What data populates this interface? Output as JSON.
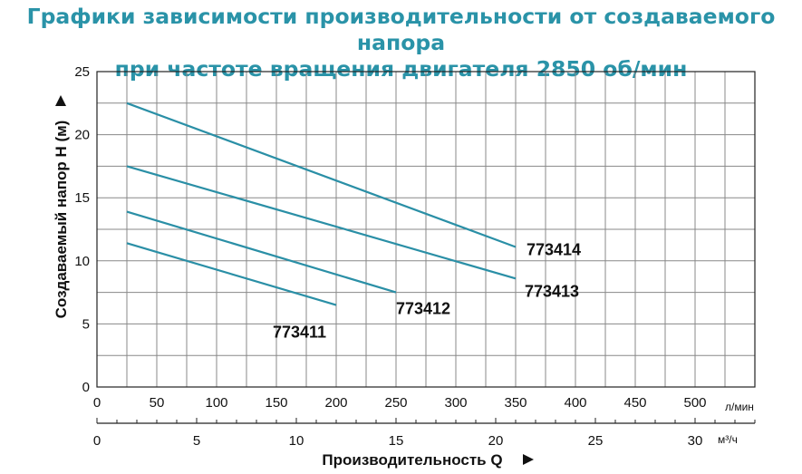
{
  "title": {
    "line1": "Графики зависимости производительности от создаваемого напора",
    "line2": "при частоте вращения двигателя 2850 об/мин"
  },
  "colors": {
    "title": "#2a93a8",
    "series": "#2a8fa6",
    "grid": "#888888"
  },
  "chart_data": {
    "type": "line",
    "xlabel": "Производительность Q",
    "ylabel": "Создаваемый напор H (м)",
    "x_unit": "л/мин",
    "x2_unit": "м³/ч",
    "xlim": [
      0,
      550
    ],
    "ylim": [
      0,
      25
    ],
    "x2lim": [
      0,
      33
    ],
    "x_ticks": [
      "0",
      "50",
      "100",
      "150",
      "200",
      "250",
      "300",
      "350",
      "400",
      "450",
      "500"
    ],
    "x2_ticks": [
      "0",
      "5",
      "10",
      "15",
      "20",
      "25",
      "30"
    ],
    "y_ticks": [
      "0",
      "5",
      "10",
      "15",
      "20",
      "25"
    ],
    "grid": true,
    "series": [
      {
        "name": "773411",
        "x": [
          25,
          200
        ],
        "y": [
          11.4,
          6.5
        ]
      },
      {
        "name": "773412",
        "x": [
          25,
          250
        ],
        "y": [
          13.9,
          7.5
        ]
      },
      {
        "name": "773413",
        "x": [
          25,
          350
        ],
        "y": [
          17.5,
          8.6
        ]
      },
      {
        "name": "773414",
        "x": [
          25,
          350
        ],
        "y": [
          22.5,
          11.1
        ]
      }
    ]
  }
}
